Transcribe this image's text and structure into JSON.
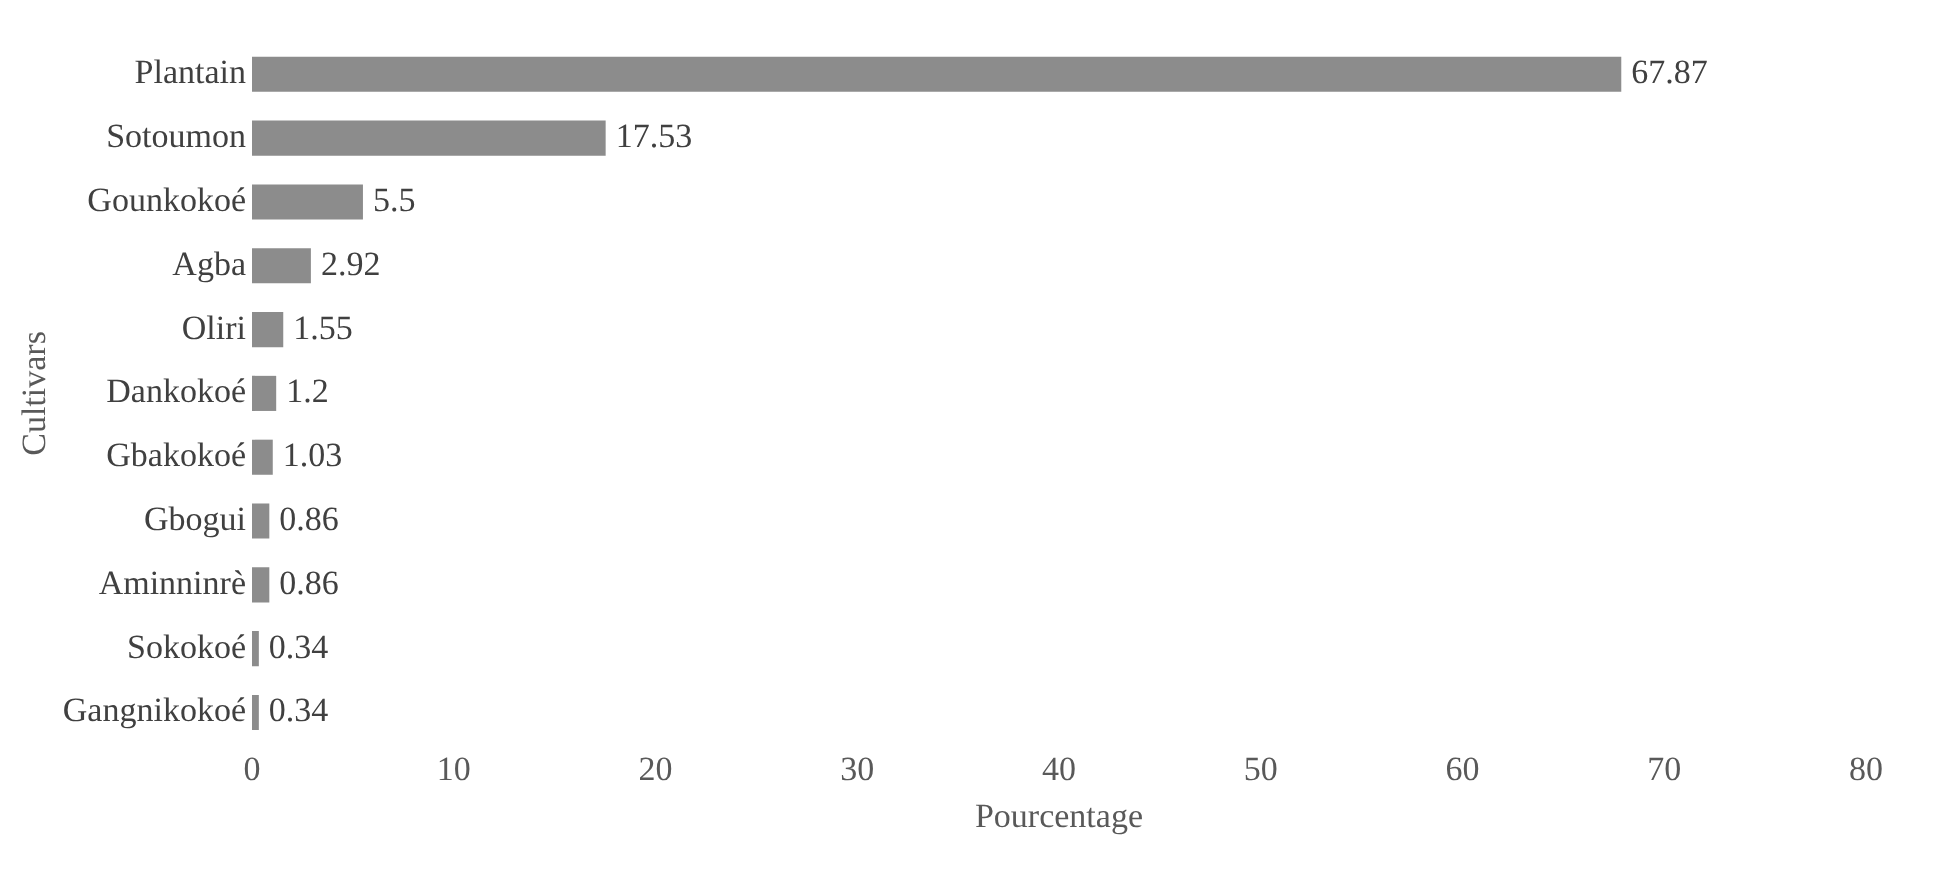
{
  "chart_data": {
    "type": "bar",
    "orientation": "horizontal",
    "xlabel": "Pourcentage",
    "ylabel": "Cultivars",
    "categories": [
      "Plantain",
      "Sotoumon",
      "Gounkokoé",
      "Agba",
      "Oliri",
      "Dankokoé",
      "Gbakokoé",
      "Gbogui",
      "Aminninrè",
      "Sokokoé",
      "Gangnikokoé"
    ],
    "values": [
      67.87,
      17.53,
      5.5,
      2.92,
      1.55,
      1.2,
      1.03,
      0.86,
      0.86,
      0.34,
      0.34
    ],
    "color": "#8c8c8c",
    "xlim": [
      0,
      80
    ],
    "xticks": [
      0,
      10,
      20,
      30,
      40,
      50,
      60,
      70,
      80
    ],
    "data_labels": true,
    "grid": false,
    "legend": false
  }
}
